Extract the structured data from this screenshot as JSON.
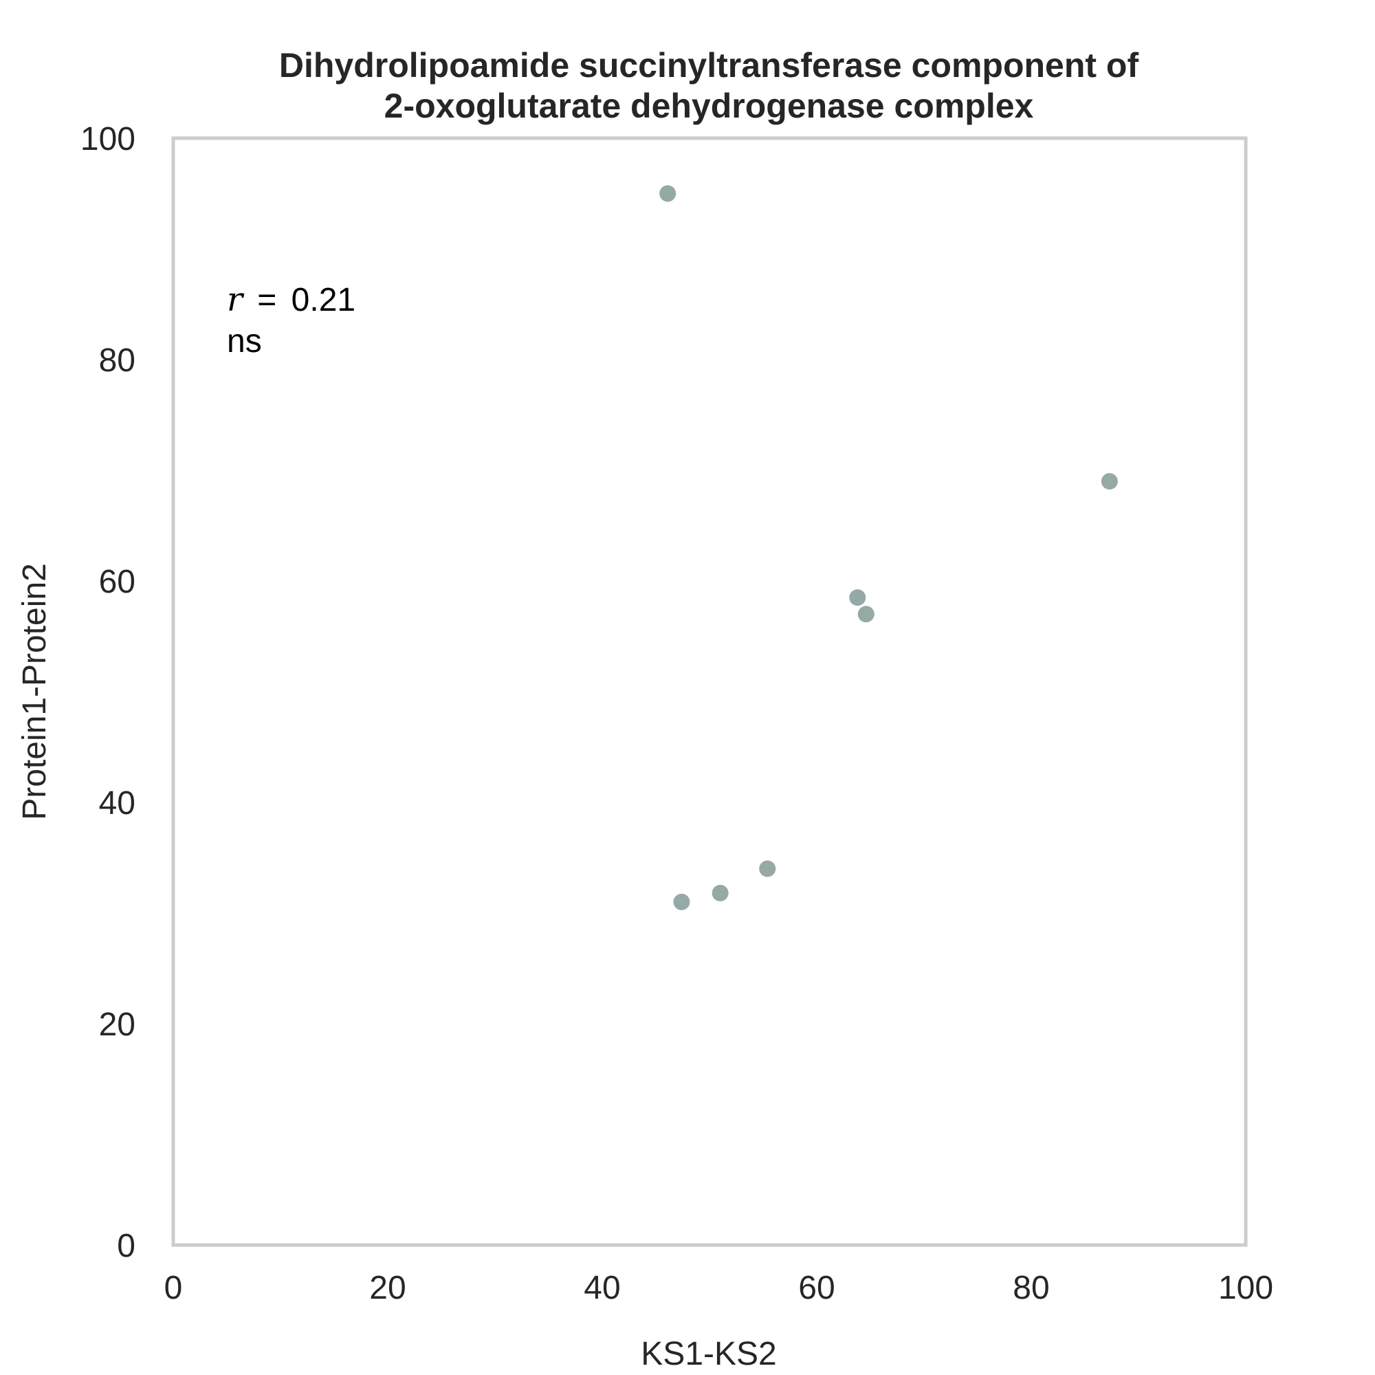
{
  "chart_data": {
    "type": "scatter",
    "title": [
      "Dihydrolipoamide succinyltransferase component of",
      "2-oxoglutarate dehydrogenase complex"
    ],
    "xlabel": "KS1-KS2",
    "ylabel": "Protein1-Protein2",
    "xlim": [
      0,
      100
    ],
    "ylim": [
      0,
      100
    ],
    "xticks": [
      "0",
      "20",
      "40",
      "60",
      "80",
      "100"
    ],
    "yticks": [
      "0",
      "20",
      "40",
      "60",
      "80",
      "100"
    ],
    "grid": false,
    "series": [
      {
        "color": "#95a9a5",
        "points": [
          {
            "x": 46.1,
            "y": 95.0
          },
          {
            "x": 47.4,
            "y": 31.0
          },
          {
            "x": 51.0,
            "y": 31.8
          },
          {
            "x": 55.4,
            "y": 34.0
          },
          {
            "x": 63.8,
            "y": 58.5
          },
          {
            "x": 64.6,
            "y": 57.0
          },
          {
            "x": 87.3,
            "y": 69.0
          }
        ]
      }
    ],
    "annotation": {
      "r_symbol": "r",
      "equals": "=",
      "r_value": "0.21",
      "significance": "ns",
      "position": "top-left"
    }
  }
}
